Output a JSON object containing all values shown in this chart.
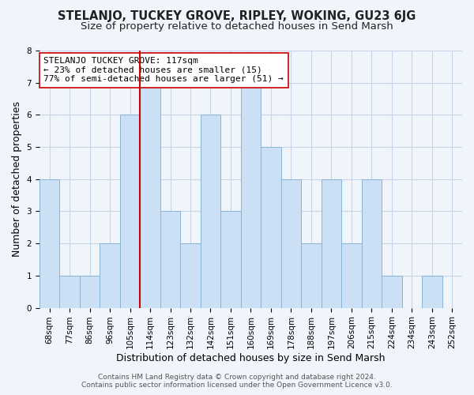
{
  "title": "STELANJO, TUCKEY GROVE, RIPLEY, WOKING, GU23 6JG",
  "subtitle": "Size of property relative to detached houses in Send Marsh",
  "xlabel": "Distribution of detached houses by size in Send Marsh",
  "ylabel": "Number of detached properties",
  "bin_labels": [
    "68sqm",
    "77sqm",
    "86sqm",
    "96sqm",
    "105sqm",
    "114sqm",
    "123sqm",
    "132sqm",
    "142sqm",
    "151sqm",
    "160sqm",
    "169sqm",
    "178sqm",
    "188sqm",
    "197sqm",
    "206sqm",
    "215sqm",
    "224sqm",
    "234sqm",
    "243sqm",
    "252sqm"
  ],
  "bar_values": [
    4,
    1,
    1,
    2,
    6,
    7,
    3,
    2,
    6,
    3,
    7,
    5,
    4,
    2,
    4,
    2,
    4,
    1,
    0,
    1
  ],
  "bar_color": "#cce0f5",
  "bar_edge_color": "#8ab4d4",
  "vline_position": 5,
  "vline_color": "#cc0000",
  "ylim": [
    0,
    8
  ],
  "yticks": [
    0,
    1,
    2,
    3,
    4,
    5,
    6,
    7,
    8
  ],
  "annotation_line1": "STELANJO TUCKEY GROVE: 117sqm",
  "annotation_line2": "← 23% of detached houses are smaller (15)",
  "annotation_line3": "77% of semi-detached houses are larger (51) →",
  "footer1": "Contains HM Land Registry data © Crown copyright and database right 2024.",
  "footer2": "Contains public sector information licensed under the Open Government Licence v3.0.",
  "title_fontsize": 10.5,
  "subtitle_fontsize": 9.5,
  "axis_label_fontsize": 9,
  "tick_fontsize": 7.5,
  "annotation_fontsize": 8,
  "footer_fontsize": 6.5,
  "background_color": "#f0f4fb",
  "plot_bg_color": "#f0f4fb",
  "grid_color": "#c8d4e8"
}
